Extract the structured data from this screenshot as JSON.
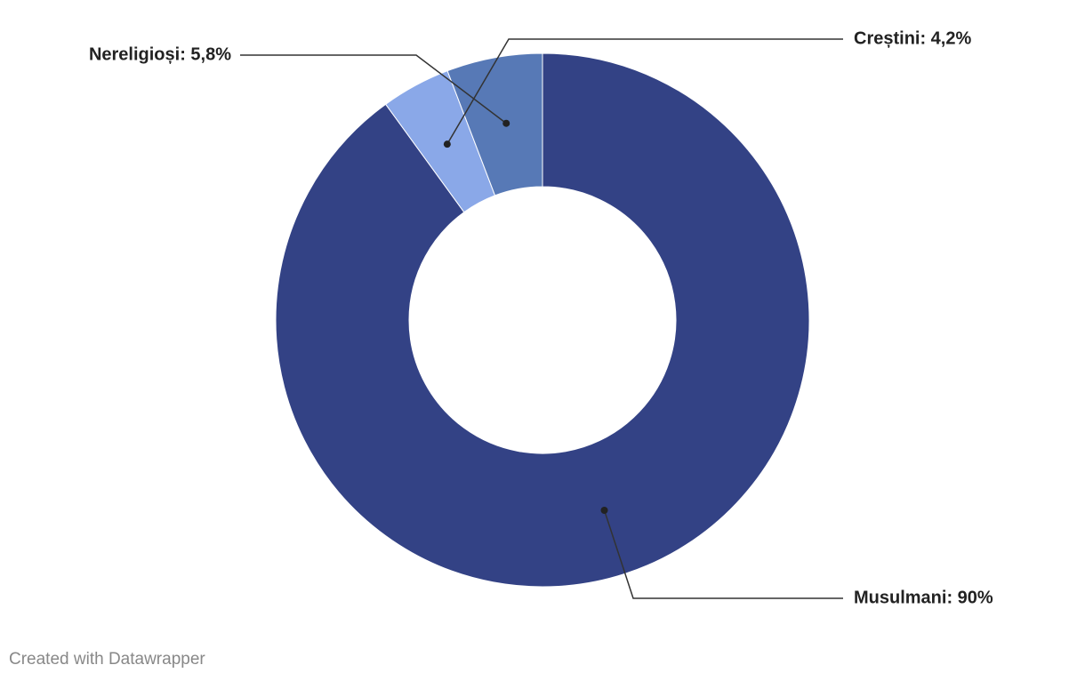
{
  "chart_data": {
    "type": "donut",
    "values": [
      90,
      4.2,
      5.8
    ],
    "value_labels": [
      "Musulmani: 90%",
      "Creștini: 4,2%",
      "Nereligioși: 5,8%"
    ],
    "colors": [
      "#334285",
      "#8aa8e8",
      "#5779b6"
    ],
    "credit": "Created with Datawrapper"
  }
}
